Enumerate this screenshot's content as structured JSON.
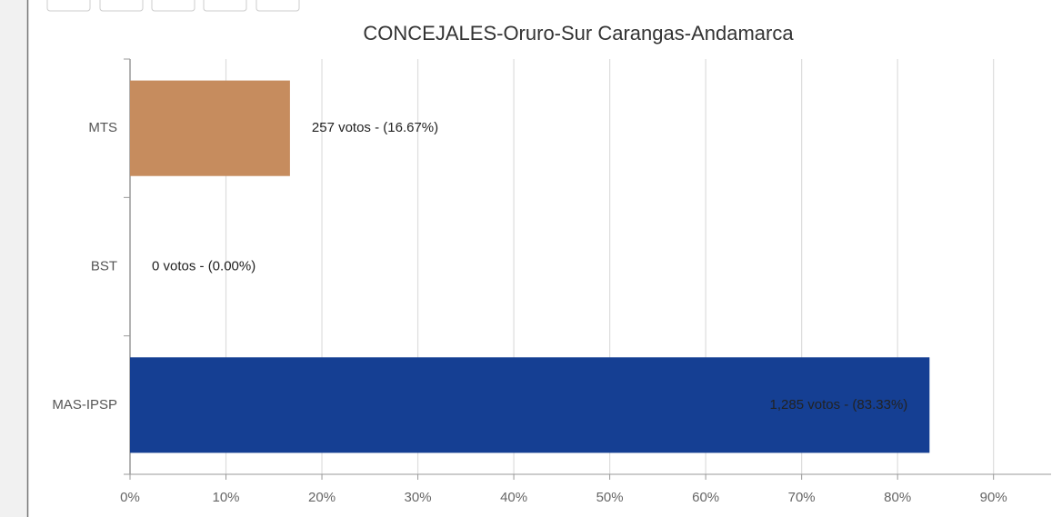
{
  "chart_data": {
    "type": "hbar",
    "title": "CONCEJALES-Oruro-Sur Carangas-Andamarca",
    "categories": [
      "MTS",
      "BST",
      "MAS-IPSP"
    ],
    "values": [
      16.67,
      0,
      83.33
    ],
    "value_labels": [
      "257 votos - (16.67%)",
      "0 votos - (0.00%)",
      "1,285 votos - (83.33%)"
    ],
    "colors": [
      "#c68c5e",
      "#6a9a3c",
      "#153f93"
    ],
    "xlim": [
      0,
      96
    ],
    "xticks": [
      {
        "value": 0,
        "label": "0%"
      },
      {
        "value": 10,
        "label": "10%"
      },
      {
        "value": 20,
        "label": "20%"
      },
      {
        "value": 30,
        "label": "30%"
      },
      {
        "value": 40,
        "label": "40%"
      },
      {
        "value": 50,
        "label": "50%"
      },
      {
        "value": 60,
        "label": "60%"
      },
      {
        "value": 70,
        "label": "70%"
      },
      {
        "value": 80,
        "label": "80%"
      },
      {
        "value": 90,
        "label": "90%"
      }
    ],
    "grid": true
  }
}
